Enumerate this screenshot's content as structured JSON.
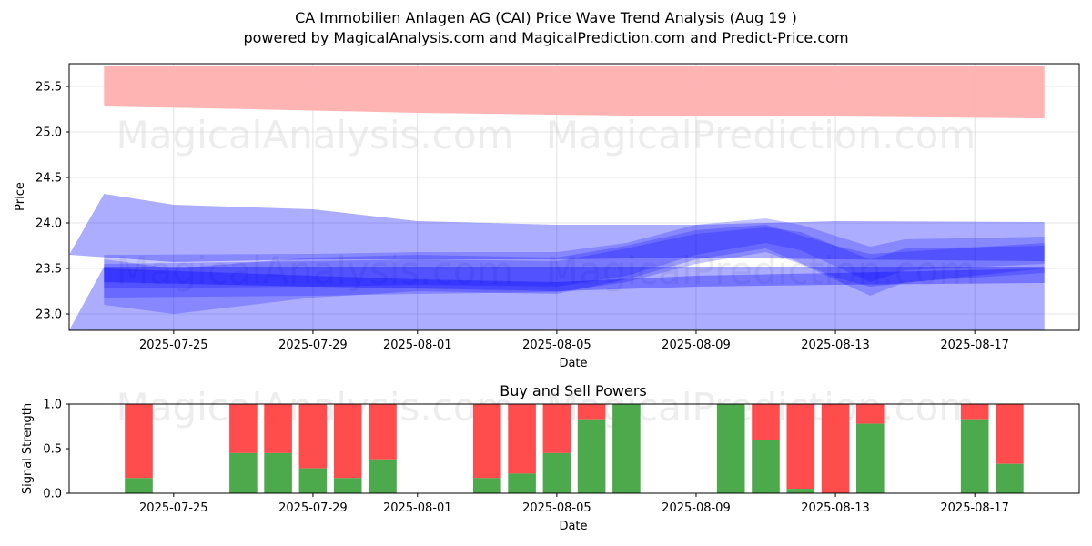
{
  "header": {
    "title": "CA Immobilien Anlagen AG (CAI) Price Wave Trend Analysis (Aug 19 )",
    "subtitle": "powered by MagicalAnalysis.com and MagicalPrediction.com and Predict-Price.com"
  },
  "watermarks": [
    "MagicalAnalysis.com",
    "MagicalPrediction.com"
  ],
  "colors": {
    "resistance_band": "#ffb0b0",
    "wave_band": "#0000ff",
    "buy": "#4caa4c",
    "sell": "#ff4c4c"
  },
  "chart_data": [
    {
      "type": "area",
      "xlabel": "Date",
      "ylabel": "Price",
      "x_range": [
        "2025-07-22",
        "2025-08-20"
      ],
      "ylim": [
        22.82,
        25.75
      ],
      "yticks": [
        23.0,
        23.5,
        24.0,
        24.5,
        25.0,
        25.5
      ],
      "xticks": [
        "2025-07-25",
        "2025-07-29",
        "2025-08-01",
        "2025-08-05",
        "2025-08-09",
        "2025-08-13",
        "2025-08-17"
      ],
      "grid": true,
      "bands": [
        {
          "color": "#ffb0b0",
          "opacity": 0.95,
          "upper": [
            [
              "2025-07-23",
              25.73
            ],
            [
              "2025-08-19",
              25.73
            ]
          ],
          "lower": [
            [
              "2025-07-23",
              25.28
            ],
            [
              "2025-07-26",
              25.26
            ],
            [
              "2025-08-01",
              25.21
            ],
            [
              "2025-08-07",
              25.18
            ],
            [
              "2025-08-13",
              25.17
            ],
            [
              "2025-08-19",
              25.15
            ]
          ]
        },
        {
          "color": "#0000ff",
          "opacity": 0.32,
          "upper": [
            [
              "2025-07-23",
              24.32
            ],
            [
              "2025-07-25",
              24.2
            ],
            [
              "2025-07-29",
              24.15
            ],
            [
              "2025-08-01",
              24.02
            ],
            [
              "2025-08-05",
              23.98
            ],
            [
              "2025-08-09",
              23.98
            ],
            [
              "2025-08-13",
              24.02
            ],
            [
              "2025-08-19",
              24.01
            ]
          ],
          "lower": [
            [
              "2025-07-22",
              23.65
            ],
            [
              "2025-07-25",
              23.57
            ],
            [
              "2025-07-29",
              23.6
            ],
            [
              "2025-08-01",
              23.6
            ],
            [
              "2025-08-05",
              23.6
            ],
            [
              "2025-08-09",
              23.62
            ],
            [
              "2025-08-13",
              23.6
            ],
            [
              "2025-08-19",
              23.58
            ]
          ]
        },
        {
          "color": "#0000ff",
          "opacity": 0.32,
          "upper": [
            [
              "2025-07-23",
              23.52
            ],
            [
              "2025-08-19",
              23.52
            ]
          ],
          "lower": [
            [
              "2025-07-22",
              22.82
            ],
            [
              "2025-08-19",
              22.82
            ]
          ]
        },
        {
          "color": "#0000ff",
          "opacity": 0.22,
          "upper": [
            [
              "2025-07-23",
              23.65
            ],
            [
              "2025-07-29",
              23.66
            ],
            [
              "2025-08-01",
              23.68
            ],
            [
              "2025-08-05",
              23.68
            ],
            [
              "2025-08-07",
              23.78
            ],
            [
              "2025-08-09",
              23.98
            ],
            [
              "2025-08-11",
              24.05
            ],
            [
              "2025-08-12",
              23.98
            ],
            [
              "2025-08-14",
              23.74
            ],
            [
              "2025-08-15",
              23.82
            ],
            [
              "2025-08-19",
              23.85
            ]
          ],
          "lower": [
            [
              "2025-07-23",
              23.18
            ],
            [
              "2025-07-29",
              23.2
            ],
            [
              "2025-08-01",
              23.22
            ],
            [
              "2025-08-05",
              23.24
            ],
            [
              "2025-08-07",
              23.35
            ],
            [
              "2025-08-09",
              23.55
            ],
            [
              "2025-08-11",
              23.68
            ],
            [
              "2025-08-12",
              23.55
            ],
            [
              "2025-08-14",
              23.2
            ],
            [
              "2025-08-15",
              23.35
            ],
            [
              "2025-08-19",
              23.45
            ]
          ]
        },
        {
          "color": "#0000ff",
          "opacity": 0.22,
          "upper": [
            [
              "2025-07-23",
              23.55
            ],
            [
              "2025-07-29",
              23.58
            ],
            [
              "2025-08-01",
              23.6
            ],
            [
              "2025-08-05",
              23.58
            ],
            [
              "2025-08-07",
              23.72
            ],
            [
              "2025-08-09",
              23.88
            ],
            [
              "2025-08-11",
              23.95
            ],
            [
              "2025-08-12",
              23.9
            ],
            [
              "2025-08-14",
              23.6
            ],
            [
              "2025-08-15",
              23.72
            ],
            [
              "2025-08-19",
              23.75
            ]
          ],
          "lower": [
            [
              "2025-07-23",
              23.28
            ],
            [
              "2025-07-29",
              23.3
            ],
            [
              "2025-08-01",
              23.32
            ],
            [
              "2025-08-05",
              23.3
            ],
            [
              "2025-08-07",
              23.42
            ],
            [
              "2025-08-09",
              23.65
            ],
            [
              "2025-08-11",
              23.78
            ],
            [
              "2025-08-12",
              23.7
            ],
            [
              "2025-08-14",
              23.35
            ],
            [
              "2025-08-15",
              23.48
            ],
            [
              "2025-08-19",
              23.55
            ]
          ]
        },
        {
          "color": "#0000ff",
          "opacity": 0.22,
          "upper": [
            [
              "2025-07-23",
              23.6
            ],
            [
              "2025-07-25",
              23.5
            ],
            [
              "2025-07-29",
              23.62
            ],
            [
              "2025-08-01",
              23.65
            ],
            [
              "2025-08-05",
              23.62
            ],
            [
              "2025-08-07",
              23.75
            ],
            [
              "2025-08-09",
              23.92
            ],
            [
              "2025-08-11",
              23.98
            ],
            [
              "2025-08-13",
              23.75
            ],
            [
              "2025-08-14",
              23.66
            ],
            [
              "2025-08-19",
              23.78
            ]
          ],
          "lower": [
            [
              "2025-07-23",
              23.1
            ],
            [
              "2025-07-25",
              23.0
            ],
            [
              "2025-07-29",
              23.18
            ],
            [
              "2025-08-01",
              23.25
            ],
            [
              "2025-08-05",
              23.22
            ],
            [
              "2025-08-07",
              23.38
            ],
            [
              "2025-08-09",
              23.6
            ],
            [
              "2025-08-11",
              23.72
            ],
            [
              "2025-08-13",
              23.4
            ],
            [
              "2025-08-14",
              23.3
            ],
            [
              "2025-08-19",
              23.5
            ]
          ]
        },
        {
          "color": "#0000ff",
          "opacity": 0.32,
          "upper": [
            [
              "2025-07-23",
              23.5
            ],
            [
              "2025-07-29",
              23.42
            ],
            [
              "2025-08-01",
              23.38
            ],
            [
              "2025-08-05",
              23.35
            ],
            [
              "2025-08-09",
              23.42
            ],
            [
              "2025-08-13",
              23.45
            ],
            [
              "2025-08-19",
              23.5
            ]
          ],
          "lower": [
            [
              "2025-07-23",
              23.35
            ],
            [
              "2025-07-29",
              23.3
            ],
            [
              "2025-08-01",
              23.28
            ],
            [
              "2025-08-05",
              23.25
            ],
            [
              "2025-08-09",
              23.3
            ],
            [
              "2025-08-13",
              23.32
            ],
            [
              "2025-08-19",
              23.34
            ]
          ]
        }
      ]
    },
    {
      "type": "bar",
      "title": "Buy and Sell Powers",
      "xlabel": "Date",
      "ylabel": "Signal Strength",
      "x_range": [
        "2025-07-22",
        "2025-08-20"
      ],
      "ylim": [
        0,
        1
      ],
      "yticks": [
        0.0,
        0.5,
        1.0
      ],
      "xticks": [
        "2025-07-25",
        "2025-07-29",
        "2025-08-01",
        "2025-08-05",
        "2025-08-09",
        "2025-08-13",
        "2025-08-17"
      ],
      "categories": [
        "2025-07-24",
        "2025-07-27",
        "2025-07-28",
        "2025-07-29",
        "2025-07-30",
        "2025-07-31",
        "2025-08-03",
        "2025-08-04",
        "2025-08-05",
        "2025-08-06",
        "2025-08-07",
        "2025-08-10",
        "2025-08-11",
        "2025-08-12",
        "2025-08-13",
        "2025-08-14",
        "2025-08-17",
        "2025-08-18"
      ],
      "series": [
        {
          "name": "Buy",
          "values": [
            0.17,
            0.45,
            0.45,
            0.28,
            0.17,
            0.38,
            0.17,
            0.22,
            0.45,
            0.83,
            1.0,
            1.0,
            0.6,
            0.05,
            0.0,
            0.78,
            0.83,
            0.33
          ]
        },
        {
          "name": "Sell",
          "values": [
            0.83,
            0.55,
            0.55,
            0.72,
            0.83,
            0.62,
            0.83,
            0.78,
            0.55,
            0.17,
            0.0,
            0.0,
            0.4,
            0.95,
            1.0,
            0.22,
            0.17,
            0.67
          ]
        }
      ]
    }
  ]
}
